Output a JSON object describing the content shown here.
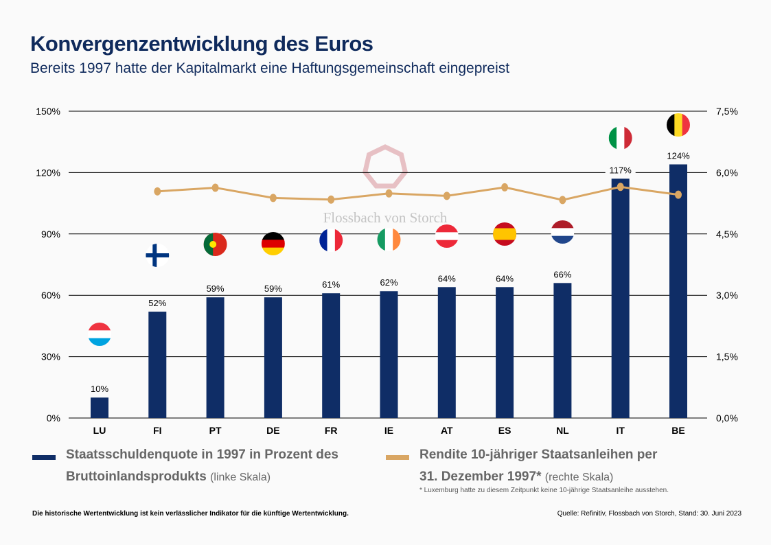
{
  "header": {
    "title": "Konvergenzentwicklung des Euros",
    "subtitle": "Bereits 1997 hatte der Kapitalmarkt eine Haftungsgemeinschaft  eingepreist"
  },
  "chart_data": {
    "type": "bar",
    "categories": [
      "LU",
      "FI",
      "PT",
      "DE",
      "FR",
      "IE",
      "AT",
      "ES",
      "NL",
      "IT",
      "BE"
    ],
    "series": [
      {
        "name": "Staatsschuldenquote in 1997 in Prozent des Bruttoinlandsprodukts",
        "axis": "left",
        "type": "bar",
        "color": "#0f2d66",
        "values": [
          10,
          52,
          59,
          59,
          61,
          62,
          64,
          64,
          66,
          117,
          124
        ],
        "labels": [
          "10%",
          "52%",
          "59%",
          "59%",
          "61%",
          "62%",
          "64%",
          "64%",
          "66%",
          "117%",
          "124%"
        ]
      },
      {
        "name": "Rendite 10-jähriger Staatsanleihen per 31. Dezember 1997*",
        "axis": "right",
        "type": "line",
        "color": "#d9a663",
        "values": [
          null,
          5.54,
          5.63,
          5.38,
          5.34,
          5.49,
          5.43,
          5.64,
          5.33,
          5.65,
          5.46
        ]
      }
    ],
    "left_axis": {
      "range": [
        0,
        150
      ],
      "ticks": [
        "0%",
        "30%",
        "60%",
        "90%",
        "120%",
        "150%"
      ]
    },
    "right_axis": {
      "range": [
        0,
        7.5
      ],
      "ticks": [
        "0,0%",
        "1,5%",
        "3,0%",
        "4,5%",
        "6,0%",
        "7,5%"
      ]
    },
    "grid": true,
    "flags": [
      "luxembourg-flag",
      "finland-flag",
      "portugal-flag",
      "germany-flag",
      "france-flag",
      "ireland-flag",
      "austria-flag",
      "spain-flag",
      "netherlands-flag",
      "italy-flag",
      "belgium-flag"
    ]
  },
  "legend": {
    "bar_label": "Staatsschuldenquote in 1997 in Prozent des",
    "bar_label2": "Bruttoinlandsprodukts",
    "bar_scale": "(linke Skala)",
    "line_label": "Rendite 10-jähriger Staatsanleihen per",
    "line_label2": "31. Dezember 1997",
    "line_star": "*",
    "line_scale": "(rechte Skala)"
  },
  "watermark": "Flossbach von Storch",
  "footnote": "* Luxemburg hatte zu diesem Zeitpunkt keine 10-jährige Staatsanleihe ausstehen.",
  "disclaimer": "Die historische Wertentwicklung ist kein verlässlicher Indikator für die künftige Wertentwicklung.",
  "source": "Quelle: Refinitiv, Flossbach von Storch, Stand: 30. Juni 2023"
}
